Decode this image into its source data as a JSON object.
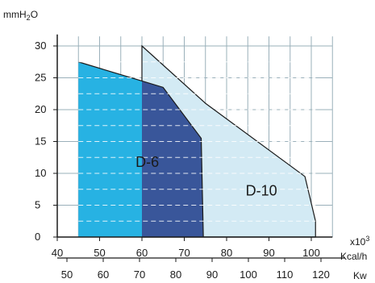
{
  "chart_data": {
    "type": "area",
    "y_axis": {
      "label_main": "mmH",
      "label_sub": "2",
      "label_end": "O",
      "ticks": [
        0,
        5,
        10,
        15,
        20,
        25,
        30
      ],
      "range": [
        0,
        30
      ]
    },
    "x_axis_kcal": {
      "multiplier": "x10",
      "multiplier_exp": "3",
      "unit": "Kcal/h",
      "ticks": [
        40,
        50,
        60,
        70,
        80,
        90,
        100
      ],
      "range": [
        40,
        105
      ]
    },
    "x_axis_kw": {
      "unit": "Kw",
      "ticks": [
        50,
        60,
        70,
        80,
        90,
        100,
        110,
        120
      ]
    },
    "series": [
      {
        "name": "D-6",
        "segments": [
          {
            "color": "#27b2e3",
            "points": [
              [
                45,
                27.5
              ],
              [
                60,
                24.5
              ],
              [
                60,
                0
              ],
              [
                45,
                0
              ]
            ]
          },
          {
            "color": "#39569a",
            "points": [
              [
                60,
                24.5
              ],
              [
                65,
                23.5
              ],
              [
                74,
                15.5
              ],
              [
                74.5,
                0
              ],
              [
                60,
                0
              ]
            ]
          }
        ]
      },
      {
        "name": "D-10",
        "color": "#d3eaf4",
        "outline": [
          [
            60,
            30
          ],
          [
            75,
            21
          ],
          [
            98.5,
            9.5
          ],
          [
            101,
            2.5
          ],
          [
            101,
            0
          ],
          [
            60,
            0
          ]
        ]
      }
    ],
    "labels": [
      {
        "text": "D-6",
        "x": 58.5,
        "y": 11
      },
      {
        "text": "D-10",
        "x": 84.5,
        "y": 6.5
      }
    ],
    "grid": true
  }
}
